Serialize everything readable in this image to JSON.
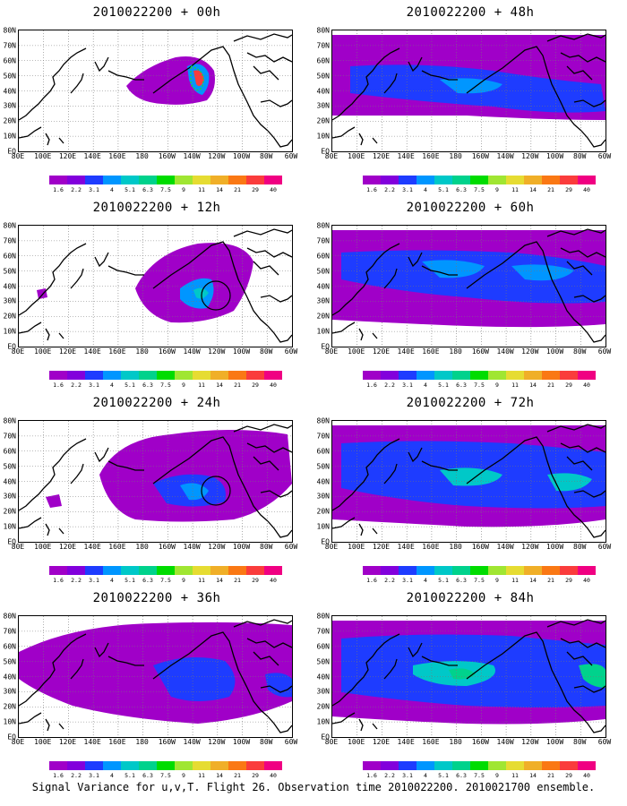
{
  "panels": [
    {
      "title": "2010022200 + 00h",
      "coverage": "f00"
    },
    {
      "title": "2010022200 + 48h",
      "coverage": "f48"
    },
    {
      "title": "2010022200 + 12h",
      "coverage": "f12"
    },
    {
      "title": "2010022200 + 60h",
      "coverage": "f60"
    },
    {
      "title": "2010022200 + 24h",
      "coverage": "f24"
    },
    {
      "title": "2010022200 + 72h",
      "coverage": "f72"
    },
    {
      "title": "2010022200 + 36h",
      "coverage": "f36"
    },
    {
      "title": "2010022200 + 84h",
      "coverage": "f84"
    }
  ],
  "lat_labels": [
    "80N",
    "70N",
    "60N",
    "50N",
    "40N",
    "30N",
    "20N",
    "10N",
    "EQ"
  ],
  "lon_labels": [
    "80E",
    "100E",
    "120E",
    "140E",
    "160E",
    "180",
    "160W",
    "140W",
    "120W",
    "100W",
    "80W",
    "60W"
  ],
  "colorbar": {
    "ticks": [
      "1.6",
      "2.2",
      "3.1",
      "4",
      "5.1",
      "6.3",
      "7.5",
      "9",
      "11",
      "14",
      "21",
      "29",
      "40"
    ],
    "colors": [
      "#a000c8",
      "#8200dc",
      "#1e3cff",
      "#0096ff",
      "#00c8c8",
      "#00d28c",
      "#00dc00",
      "#a0e632",
      "#e6dc32",
      "#f0af28",
      "#fa7814",
      "#fa3c3c",
      "#f00082"
    ]
  },
  "caption": "Signal Variance for u,v,T. Flight 26. Observation time 2010022200. 2010021700 ensemble."
}
